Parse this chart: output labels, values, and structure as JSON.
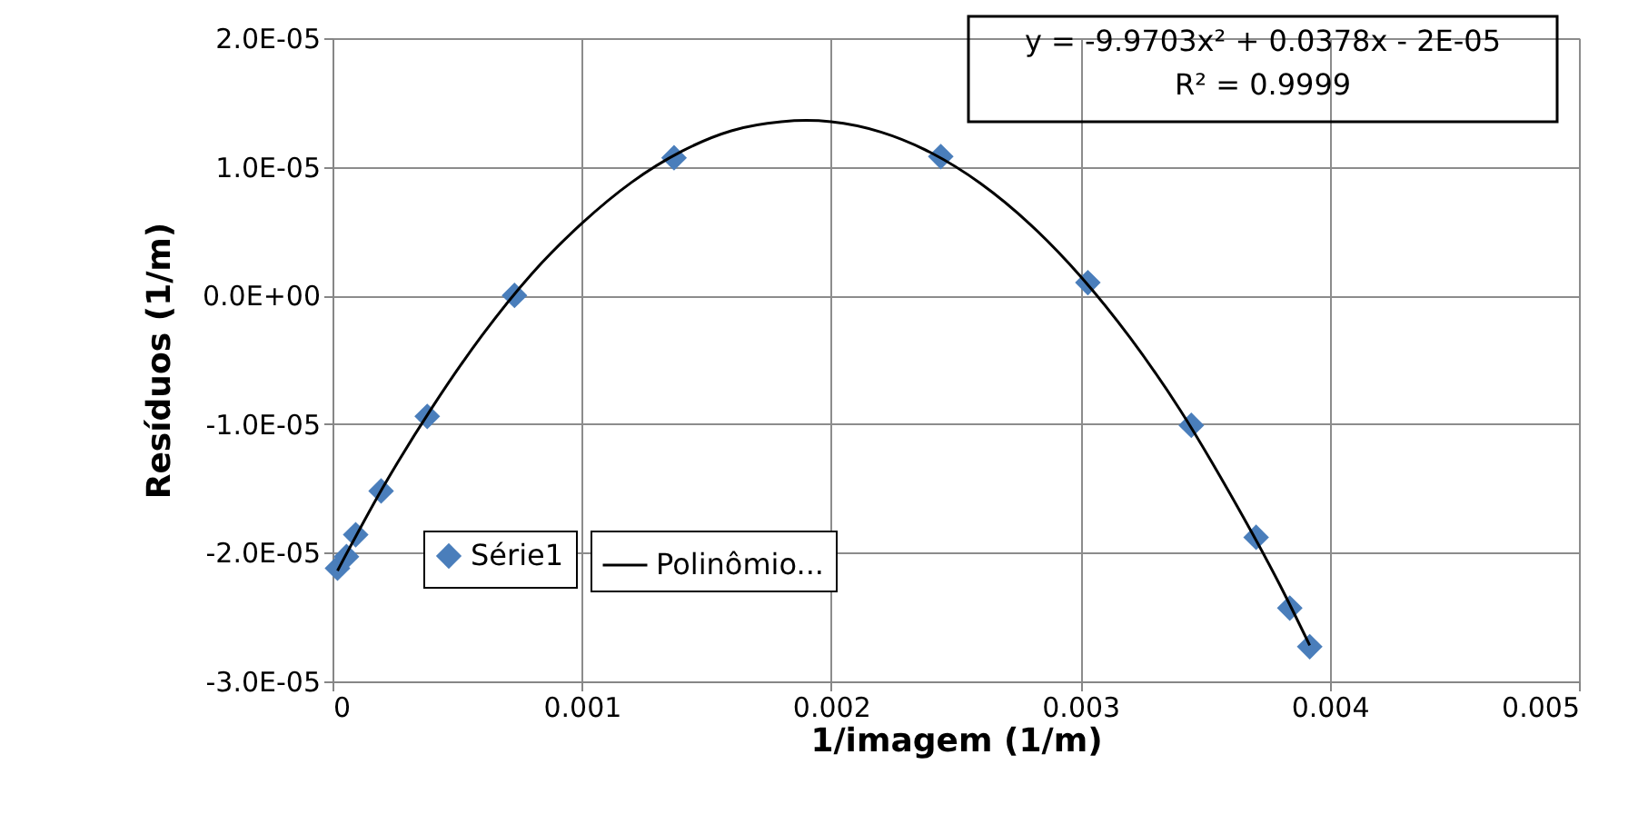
{
  "chart_data": {
    "type": "scatter",
    "xlabel": "1/imagem (1/m)",
    "ylabel": "Resíduos  (1/m)",
    "series": [
      {
        "name": "Série1",
        "color": "#4a7ebb",
        "marker": "diamond",
        "x": [
          2e-05,
          5.6e-05,
          9.3e-05,
          0.000195,
          0.00038,
          0.00073,
          0.00137,
          0.00244,
          0.00303,
          0.003445,
          0.003705,
          0.00384,
          0.00392
        ],
        "values": [
          -2.12e-05,
          -2.03e-05,
          -1.86e-05,
          -1.52e-05,
          -9.4e-06,
          0.0,
          1.07e-05,
          1.08e-05,
          1e-06,
          -1.01e-05,
          -1.88e-05,
          -2.43e-05,
          -2.73e-05
        ]
      },
      {
        "name": "Polinômio...",
        "type": "line",
        "color": "#000000",
        "line_style": "solid",
        "x": [
          2e-05,
          0.0002,
          0.0004,
          0.0006,
          0.0008,
          0.001,
          0.0012,
          0.0014,
          0.0016,
          0.0018,
          0.0019,
          0.002,
          0.0022,
          0.0024,
          0.0026,
          0.0028,
          0.003,
          0.0032,
          0.0034,
          0.0036,
          0.0038,
          0.00392
        ],
        "values": [
          -2.14e-05,
          -1.5e-05,
          -8.7e-06,
          -3.1e-06,
          1.7e-06,
          5.6e-06,
          8.8e-06,
          1.12e-05,
          1.28e-05,
          1.35e-05,
          1.36e-05,
          1.35e-05,
          1.27e-05,
          1.11e-05,
          8.7e-06,
          5.5e-06,
          1.5e-06,
          -3.3e-06,
          -8.9e-06,
          -1.54e-05,
          -2.25e-05,
          -2.72e-05
        ]
      }
    ],
    "xlim": [
      0,
      0.005
    ],
    "xticks": [
      0,
      0.001,
      0.002,
      0.003,
      0.004,
      0.005
    ],
    "ylim": [
      -3e-05,
      2e-05
    ],
    "yticks": [
      {
        "value": -3e-05,
        "label": "-3.0E-05"
      },
      {
        "value": -2e-05,
        "label": "-2.0E-05"
      },
      {
        "value": -1e-05,
        "label": "-1.0E-05"
      },
      {
        "value": 0,
        "label": "0.0E+00"
      },
      {
        "value": 1e-05,
        "label": "1.0E-05"
      },
      {
        "value": 2e-05,
        "label": "2.0E-05"
      }
    ],
    "grid": true,
    "legend": "bottom left",
    "annotations": [
      "y = -9.9703x² + 0.0378x - 2E-05",
      "R² = 0.9999"
    ]
  }
}
